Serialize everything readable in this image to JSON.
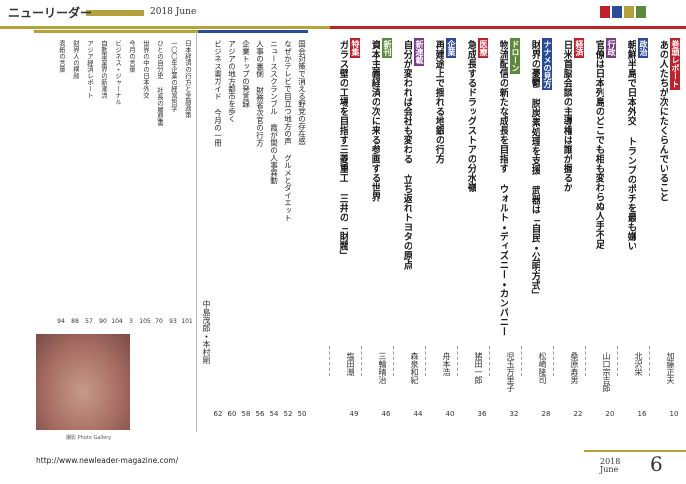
{
  "header": {
    "title": "ニューリーダー",
    "issue": "2018 June"
  },
  "features": [
    {
      "tag": "巻頭レポート",
      "title": "あの人たちが次にたくらんでいること",
      "author": "加藤正夫",
      "page": 10
    },
    {
      "tag": "政治",
      "title": "朝鮮半島で日本外交 トランプのポチを最も嫌い",
      "author": "北沢栄",
      "page": 16
    },
    {
      "tag": "行政",
      "title": "官僚は日本列島のどこでも相も変わらぬ人手不足",
      "author": "山口宗吉郎",
      "page": 20
    },
    {
      "tag": "経済",
      "title": "日米首脳会談の主導権は誰が握るか",
      "author": "桑原寿男",
      "page": 22
    },
    {
      "tag": "ナナメの見方",
      "title": "財界の憂鬱 脱炭素処理を支援 武器は「自民・公明方式」",
      "author": "松崎隆司",
      "page": 28
    },
    {
      "tag": "ドローン",
      "title": "物流配信の新たな成長を目指す ウォルト・ディズニー・カンパニー",
      "author": "児玉万里子",
      "page": 32
    },
    {
      "tag": "医療",
      "title": "急成長するドラッグストアの分水嶺",
      "author": "猪田一郎",
      "page": 36
    },
    {
      "tag": "企業",
      "title": "再建途上で揺れる地銀の行方",
      "author": "舟本浩",
      "page": 40
    },
    {
      "tag": "新連載",
      "title": "自分が変われば会社も変わる 立ち返れトヨタの原点",
      "author": "森泉和紀",
      "page": 44
    },
    {
      "tag": "新刊",
      "title": "資本主義経済の次に来る参画する世界",
      "author": "三輪晴治",
      "page": 46
    },
    {
      "tag": "特集",
      "title": "ガラス壁の工場を目指す三菱重工 三井の「財閥」",
      "author": "塩田潮",
      "page": 49
    }
  ],
  "middle": [
    {
      "title": "国会対策で消える野党の存在感",
      "page": 50
    },
    {
      "title": "なぜかテレビで目立つ地方の声 グルメとダイエット",
      "page": 52
    },
    {
      "title": "ニューススクランブル 霞が関の人事異動",
      "page": 54
    },
    {
      "title": "人事の裏側 財務省次官の行方",
      "page": 56
    },
    {
      "title": "企業トップの発言録",
      "page": 58
    },
    {
      "title": "アジアの地方都市を歩く",
      "page": 60
    },
    {
      "title": "ビジネス書ガイド 今月の一冊",
      "page": 62
    }
  ],
  "middle_author": "中島茂郎・本村剛",
  "left": [
    {
      "title": "日本経済の行方と金融政策",
      "page": 101
    },
    {
      "title": "一〇〇年企業の経営哲学",
      "page": 93
    },
    {
      "title": "ひとの自分史 社長の履歴書",
      "page": 70
    },
    {
      "title": "世界の中の日本外交",
      "page": 105
    },
    {
      "title": "今月の言葉",
      "page": 3
    },
    {
      "title": "ビジネス・ジャーナル",
      "page": 104
    },
    {
      "title": "自動車業界の新潮流",
      "page": 90
    },
    {
      "title": "アジア経済レポート",
      "page": 57
    },
    {
      "title": "財界人の横顔",
      "page": 88
    },
    {
      "title": "表紙の言葉",
      "page": 94
    }
  ],
  "photo_caption": "撮影 Photo Gallery",
  "footer": {
    "url": "http://www.newleader-magazine.com/",
    "issue": "2018 June",
    "page": 6
  }
}
